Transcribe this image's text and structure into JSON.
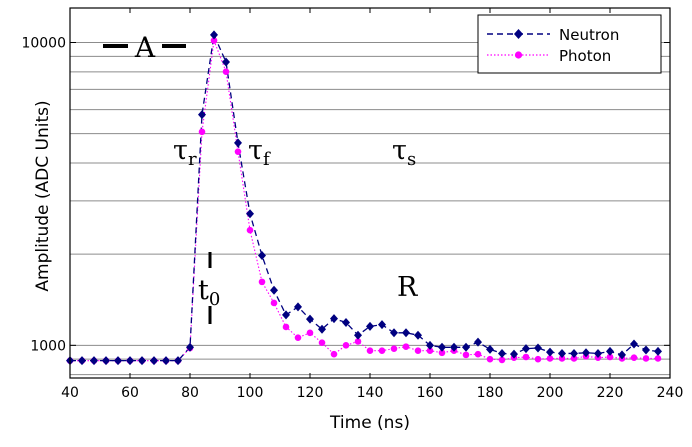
{
  "chart_data": {
    "type": "line",
    "xlabel": "Time (ns)",
    "ylabel": "Amplitude (ADC Units)",
    "xlim": [
      40,
      240
    ],
    "ylim": [
      780,
      13000
    ],
    "yscale": "log",
    "x_ticks": [
      40,
      60,
      80,
      100,
      120,
      140,
      160,
      180,
      200,
      220,
      240
    ],
    "y_ticks": [
      1000,
      10000
    ],
    "y_tick_labels": [
      "1000",
      "10000"
    ],
    "grid": "horizontal-log",
    "legend_position": "top-right",
    "colors": {
      "neutron": "#000080",
      "photon": "#ff00ff"
    },
    "series": [
      {
        "name": "Neutron",
        "key": "neutron",
        "marker": "diamond",
        "linestyle": "dashed",
        "x": [
          40,
          44,
          48,
          52,
          56,
          60,
          64,
          68,
          72,
          76,
          80,
          84,
          88,
          92,
          96,
          100,
          104,
          108,
          112,
          116,
          120,
          124,
          128,
          132,
          136,
          140,
          144,
          148,
          152,
          156,
          160,
          164,
          168,
          172,
          176,
          180,
          184,
          188,
          192,
          196,
          200,
          204,
          208,
          212,
          216,
          220,
          224,
          228,
          232,
          236
        ],
        "y": [
          890,
          890,
          890,
          890,
          890,
          890,
          890,
          890,
          890,
          890,
          985,
          5780,
          10600,
          8620,
          4660,
          2720,
          1980,
          1520,
          1260,
          1340,
          1220,
          1130,
          1225,
          1190,
          1080,
          1155,
          1170,
          1100,
          1100,
          1080,
          1000,
          985,
          985,
          985,
          1025,
          970,
          940,
          935,
          975,
          980,
          950,
          940,
          940,
          945,
          940,
          955,
          930,
          1010,
          965,
          955
        ]
      },
      {
        "name": "Photon",
        "key": "photon",
        "marker": "circle",
        "linestyle": "dotted",
        "x": [
          40,
          44,
          48,
          52,
          56,
          60,
          64,
          68,
          72,
          76,
          80,
          84,
          88,
          92,
          96,
          100,
          104,
          108,
          112,
          116,
          120,
          124,
          128,
          132,
          136,
          140,
          144,
          148,
          152,
          156,
          160,
          164,
          168,
          172,
          176,
          180,
          184,
          188,
          192,
          196,
          200,
          204,
          208,
          212,
          216,
          220,
          224,
          228,
          232,
          236
        ],
        "y": [
          890,
          890,
          890,
          890,
          890,
          890,
          890,
          890,
          890,
          890,
          980,
          5070,
          10150,
          8010,
          4360,
          2400,
          1620,
          1380,
          1150,
          1060,
          1100,
          1020,
          935,
          1000,
          1030,
          960,
          960,
          975,
          990,
          960,
          960,
          945,
          960,
          930,
          935,
          900,
          895,
          910,
          915,
          900,
          905,
          905,
          905,
          920,
          910,
          915,
          905,
          910,
          905,
          905
        ]
      }
    ],
    "annotations": {
      "A": "A",
      "tau_r_base": "τ",
      "tau_r_sub": "r",
      "tau_f_base": "τ",
      "tau_f_sub": "f",
      "tau_s_base": "τ",
      "tau_s_sub": "s",
      "t0_base": "t",
      "t0_sub": "0",
      "R": "R"
    }
  }
}
